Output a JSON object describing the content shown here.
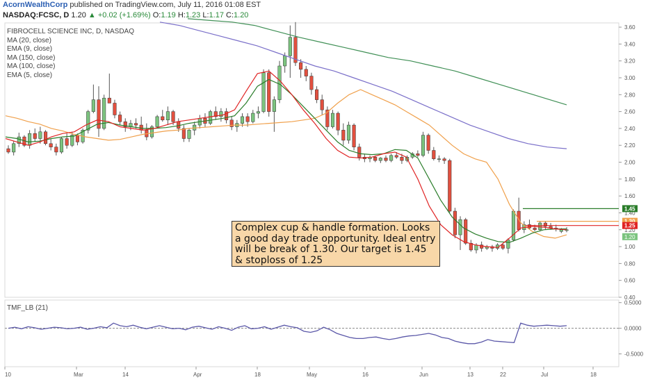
{
  "header": {
    "author": "AcornWealthCorp",
    "published": " published on TradingView.com, July 11, 2016 01:08 EST"
  },
  "quote": {
    "symbol": "NASDAQ:FCSC, D",
    "last": "1.20",
    "change": "+0.02 (+1.69%)",
    "open_label": "O:",
    "open": "1.19",
    "high_label": "H:",
    "high": "1.23",
    "low_label": "L:",
    "low": "1.17",
    "close_label": "C:",
    "close": "1.20"
  },
  "legend": {
    "title": "FIBROCELL SCIENCE INC, D, NASDAQ",
    "items": [
      "MA (20, close)",
      "EMA (9, close)",
      "MA (150, close)",
      "MA (100, close)",
      "EMA (5, close)"
    ]
  },
  "annotation": "Complex cup & handle formation. Looks a good day trade opportunity. Ideal entry will be break of 1.30. Our target is 1.45 & stoploss of 1.25",
  "indicator": {
    "label": "TMF_LB (21)"
  },
  "chart_data": [
    {
      "type": "candlestick",
      "x_tick_labels": [
        "10",
        "Mar",
        "14",
        "Apr",
        "18",
        "May",
        "16",
        "Jun",
        "13",
        "22",
        "Jul",
        "18"
      ],
      "y_tick_labels": [
        "3.60",
        "3.40",
        "3.20",
        "3.00",
        "2.80",
        "2.60",
        "2.40",
        "2.20",
        "2.00",
        "1.80",
        "1.60",
        "1.40",
        "1.20",
        "1.00",
        "0.80",
        "0.60",
        "0.40"
      ],
      "ylim": [
        0.4,
        3.65
      ],
      "candles": [
        [
          2.16,
          2.2,
          2.1,
          2.12
        ],
        [
          2.12,
          2.25,
          2.08,
          2.22
        ],
        [
          2.22,
          2.35,
          2.18,
          2.3
        ],
        [
          2.3,
          2.32,
          2.18,
          2.2
        ],
        [
          2.2,
          2.38,
          2.16,
          2.34
        ],
        [
          2.34,
          2.4,
          2.24,
          2.28
        ],
        [
          2.28,
          2.42,
          2.22,
          2.36
        ],
        [
          2.36,
          2.38,
          2.2,
          2.22
        ],
        [
          2.22,
          2.28,
          2.14,
          2.18
        ],
        [
          2.18,
          2.22,
          2.08,
          2.12
        ],
        [
          2.12,
          2.3,
          2.1,
          2.28
        ],
        [
          2.28,
          2.34,
          2.16,
          2.2
        ],
        [
          2.2,
          2.36,
          2.18,
          2.32
        ],
        [
          2.32,
          2.34,
          2.2,
          2.24
        ],
        [
          2.24,
          2.4,
          2.22,
          2.38
        ],
        [
          2.38,
          2.62,
          2.34,
          2.6
        ],
        [
          2.6,
          2.92,
          2.58,
          2.74
        ],
        [
          2.74,
          2.9,
          2.3,
          2.4
        ],
        [
          2.4,
          2.8,
          2.38,
          2.76
        ],
        [
          2.76,
          3.05,
          2.7,
          2.7
        ],
        [
          2.7,
          2.74,
          2.52,
          2.56
        ],
        [
          2.56,
          2.6,
          2.44,
          2.48
        ],
        [
          2.48,
          2.52,
          2.36,
          2.42
        ],
        [
          2.42,
          2.5,
          2.38,
          2.46
        ],
        [
          2.46,
          2.52,
          2.4,
          2.44
        ],
        [
          2.44,
          2.54,
          2.34,
          2.38
        ],
        [
          2.38,
          2.46,
          2.26,
          2.3
        ],
        [
          2.3,
          2.44,
          2.28,
          2.42
        ],
        [
          2.42,
          2.56,
          2.4,
          2.54
        ],
        [
          2.54,
          2.62,
          2.48,
          2.5
        ],
        [
          2.5,
          2.66,
          2.44,
          2.6
        ],
        [
          2.6,
          2.62,
          2.44,
          2.48
        ],
        [
          2.48,
          2.52,
          2.36,
          2.4
        ],
        [
          2.4,
          2.44,
          2.24,
          2.28
        ],
        [
          2.28,
          2.4,
          2.24,
          2.38
        ],
        [
          2.38,
          2.48,
          2.32,
          2.44
        ],
        [
          2.44,
          2.56,
          2.4,
          2.52
        ],
        [
          2.52,
          2.58,
          2.42,
          2.46
        ],
        [
          2.46,
          2.62,
          2.44,
          2.6
        ],
        [
          2.6,
          2.66,
          2.5,
          2.54
        ],
        [
          2.54,
          2.64,
          2.48,
          2.6
        ],
        [
          2.6,
          2.64,
          2.46,
          2.5
        ],
        [
          2.5,
          2.54,
          2.38,
          2.42
        ],
        [
          2.42,
          2.5,
          2.36,
          2.46
        ],
        [
          2.46,
          2.58,
          2.42,
          2.54
        ],
        [
          2.54,
          2.58,
          2.42,
          2.48
        ],
        [
          2.48,
          2.62,
          2.46,
          2.58
        ],
        [
          2.58,
          2.66,
          2.52,
          2.6
        ],
        [
          2.6,
          3.1,
          2.58,
          3.06
        ],
        [
          3.06,
          3.1,
          2.54,
          2.6
        ],
        [
          2.6,
          2.78,
          2.36,
          2.74
        ],
        [
          2.74,
          3.2,
          2.7,
          3.14
        ],
        [
          3.14,
          3.3,
          3.06,
          3.26
        ],
        [
          3.26,
          3.62,
          3.0,
          3.48
        ],
        [
          3.48,
          3.66,
          3.14,
          3.18
        ],
        [
          3.18,
          3.22,
          3.0,
          3.1
        ],
        [
          3.1,
          3.14,
          2.96,
          3.02
        ],
        [
          3.02,
          3.06,
          2.8,
          2.86
        ],
        [
          2.86,
          2.9,
          2.7,
          2.74
        ],
        [
          2.74,
          2.8,
          2.56,
          2.62
        ],
        [
          2.62,
          2.66,
          2.38,
          2.42
        ],
        [
          2.42,
          2.62,
          2.4,
          2.58
        ],
        [
          2.58,
          2.6,
          2.32,
          2.38
        ],
        [
          2.38,
          2.46,
          2.2,
          2.26
        ],
        [
          2.26,
          2.48,
          2.22,
          2.44
        ],
        [
          2.44,
          2.46,
          2.14,
          2.18
        ],
        [
          2.18,
          2.22,
          2.02,
          2.06
        ],
        [
          2.06,
          2.1,
          2.0,
          2.04
        ],
        [
          2.04,
          2.08,
          2.0,
          2.06
        ],
        [
          2.06,
          2.08,
          2.0,
          2.02
        ],
        [
          2.02,
          2.06,
          1.99,
          2.05
        ],
        [
          2.05,
          2.08,
          2.0,
          2.02
        ],
        [
          2.02,
          2.1,
          2.0,
          2.08
        ],
        [
          2.08,
          2.12,
          2.04,
          2.06
        ],
        [
          2.06,
          2.1,
          1.98,
          2.02
        ],
        [
          2.02,
          2.08,
          2.0,
          2.06
        ],
        [
          2.06,
          2.12,
          2.04,
          2.1
        ],
        [
          2.1,
          2.14,
          2.06,
          2.08
        ],
        [
          2.08,
          2.36,
          2.06,
          2.32
        ],
        [
          2.32,
          2.34,
          2.1,
          2.14
        ],
        [
          2.14,
          2.18,
          2.02,
          2.04
        ],
        [
          2.04,
          2.08,
          2.0,
          2.04
        ],
        [
          2.04,
          2.06,
          1.98,
          2.02
        ],
        [
          2.02,
          2.04,
          1.4,
          1.42
        ],
        [
          1.42,
          1.46,
          1.1,
          1.14
        ],
        [
          1.14,
          1.36,
          0.96,
          1.32
        ],
        [
          1.32,
          1.34,
          1.02,
          1.04
        ],
        [
          1.04,
          1.08,
          0.94,
          0.96
        ],
        [
          0.96,
          1.04,
          0.92,
          1.02
        ],
        [
          1.02,
          1.06,
          0.94,
          0.98
        ],
        [
          0.98,
          1.02,
          0.96,
          1.0
        ],
        [
          1.0,
          1.02,
          0.94,
          0.98
        ],
        [
          0.98,
          1.04,
          0.96,
          1.02
        ],
        [
          1.02,
          1.04,
          0.96,
          0.98
        ],
        [
          0.98,
          1.1,
          0.92,
          1.08
        ],
        [
          1.08,
          1.44,
          1.06,
          1.42
        ],
        [
          1.42,
          1.58,
          1.18,
          1.2
        ],
        [
          1.2,
          1.3,
          1.16,
          1.26
        ],
        [
          1.26,
          1.32,
          1.2,
          1.22
        ],
        [
          1.22,
          1.26,
          1.18,
          1.2
        ],
        [
          1.2,
          1.3,
          1.18,
          1.28
        ],
        [
          1.28,
          1.3,
          1.2,
          1.24
        ],
        [
          1.24,
          1.28,
          1.2,
          1.22
        ],
        [
          1.22,
          1.26,
          1.18,
          1.21
        ],
        [
          1.18,
          1.22,
          1.16,
          1.2
        ],
        [
          1.19,
          1.23,
          1.17,
          1.2
        ]
      ],
      "moving_averages": [
        {
          "name": "MA (20, close)",
          "color": "#f0a04b",
          "values": [
            2.55,
            2.52,
            2.48,
            2.45,
            2.4,
            2.37,
            2.33,
            2.3,
            2.28,
            2.26,
            2.27,
            2.3,
            2.33,
            2.35,
            2.37,
            2.38,
            2.4,
            2.41,
            2.42,
            2.43,
            2.44,
            2.44,
            2.45,
            2.46,
            2.47,
            2.48,
            2.5,
            2.52,
            2.58,
            2.7,
            2.8,
            2.86,
            2.8,
            2.74,
            2.68,
            2.6,
            2.52,
            2.44,
            2.32,
            2.2,
            2.1,
            2.04,
            2.0,
            1.8,
            1.5,
            1.28,
            1.18,
            1.12,
            1.1,
            1.14
          ]
        },
        {
          "name": "EMA (9, close)",
          "color": "#2a7d2a",
          "values": [
            2.3,
            2.28,
            2.24,
            2.25,
            2.28,
            2.3,
            2.31,
            2.38,
            2.45,
            2.47,
            2.44,
            2.42,
            2.4,
            2.4,
            2.41,
            2.43,
            2.46,
            2.48,
            2.5,
            2.52,
            2.55,
            2.7,
            2.9,
            2.98,
            2.92,
            2.8,
            2.66,
            2.52,
            2.38,
            2.24,
            2.14,
            2.1,
            2.09,
            2.1,
            2.15,
            2.14,
            2.05,
            1.8,
            1.55,
            1.35,
            1.22,
            1.15,
            1.1,
            1.06,
            1.05,
            1.1,
            1.16,
            1.2,
            1.21,
            1.21
          ]
        },
        {
          "name": "MA (150, close)",
          "color": "#3f8f55",
          "values": [
            3.7,
            3.68,
            3.66,
            3.62,
            3.55,
            3.48,
            3.42,
            3.36,
            3.3,
            3.24,
            3.2,
            3.14,
            3.08,
            3.0,
            2.92,
            2.84,
            2.76,
            2.68
          ]
        },
        {
          "name": "MA (100, close)",
          "color": "#7a6fc9",
          "values": [
            3.66,
            3.62,
            3.56,
            3.5,
            3.44,
            3.38,
            3.3,
            3.22,
            3.14,
            3.08,
            3.0,
            2.92,
            2.84,
            2.74,
            2.64,
            2.54,
            2.44,
            2.36,
            2.28,
            2.22,
            2.18,
            2.16
          ]
        },
        {
          "name": "EMA (5, close)",
          "color": "#e02424",
          "values": [
            2.28,
            2.24,
            2.2,
            2.24,
            2.3,
            2.34,
            2.36,
            2.44,
            2.5,
            2.48,
            2.42,
            2.4,
            2.38,
            2.4,
            2.44,
            2.48,
            2.5,
            2.52,
            2.54,
            2.56,
            2.62,
            2.84,
            3.05,
            3.08,
            2.96,
            2.8,
            2.62,
            2.46,
            2.28,
            2.14,
            2.06,
            2.05,
            2.06,
            2.1,
            2.12,
            2.06,
            1.8,
            1.48,
            1.26,
            1.14,
            1.06,
            1.02,
            1.0,
            0.99,
            1.1,
            1.22,
            1.24,
            1.23,
            1.21,
            1.2
          ]
        }
      ],
      "levels": [
        {
          "price": 1.45,
          "label": "1.45",
          "color": "#2a7d2a"
        },
        {
          "price": 1.3,
          "label": "1.30",
          "color": "#f0a04b"
        },
        {
          "price": 1.25,
          "label": "1.25",
          "color": "#e02424"
        }
      ],
      "last_price_label": "1.20"
    },
    {
      "type": "line",
      "name": "TMF_LB (21)",
      "y_tick_labels": [
        "0.5000",
        "0.0000",
        "-0.5000"
      ],
      "ylim": [
        -0.75,
        0.55
      ],
      "values": [
        0.0,
        0.02,
        -0.01,
        0.03,
        0.01,
        -0.02,
        0.0,
        0.02,
        0.01,
        -0.01,
        0.0,
        0.02,
        -0.02,
        0.0,
        0.03,
        0.01,
        0.1,
        0.05,
        0.03,
        0.06,
        0.02,
        -0.01,
        0.02,
        0.05,
        0.02,
        -0.01,
        0.0,
        -0.03,
        0.02,
        0.04,
        0.01,
        -0.02,
        0.03,
        0.0,
        -0.04,
        0.02,
        0.05,
        -0.01,
        0.0,
        0.03,
        -0.02,
        0.02,
        0.06,
        0.03,
        0.01,
        -0.06,
        -0.08,
        -0.05,
        0.02,
        -0.03,
        -0.1,
        -0.14,
        -0.18,
        -0.2,
        -0.2,
        -0.18,
        -0.17,
        -0.2,
        -0.22,
        -0.2,
        -0.17,
        -0.15,
        -0.14,
        -0.12,
        -0.1,
        -0.13,
        -0.18,
        -0.2,
        -0.25,
        -0.28,
        -0.3,
        -0.3,
        -0.27,
        -0.22,
        -0.25,
        -0.26,
        -0.27,
        -0.28,
        0.1,
        0.06,
        0.04,
        0.05,
        0.06,
        0.05,
        0.04,
        0.05
      ]
    }
  ]
}
